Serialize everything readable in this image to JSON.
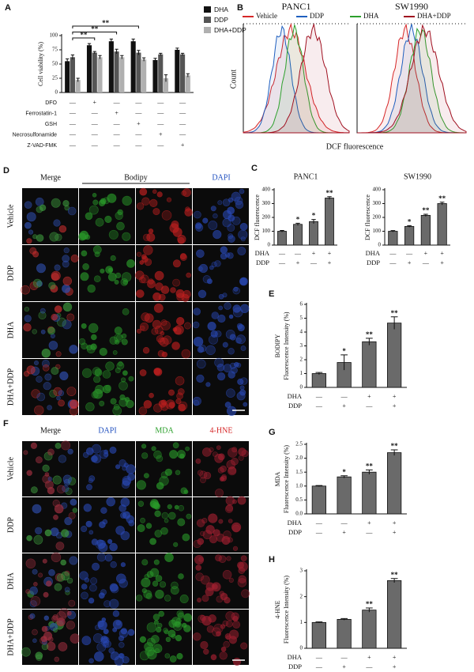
{
  "chart_data": [
    {
      "type": "bar",
      "panel": "A",
      "ylabel": "Cell viability (%)",
      "categories": [
        null,
        null,
        null,
        null,
        null,
        null
      ],
      "series": [
        {
          "name": "DHA",
          "color": "#111111",
          "values": [
            55,
            83,
            90,
            90,
            57,
            75
          ],
          "errors": [
            4,
            3,
            4,
            4,
            3,
            3
          ]
        },
        {
          "name": "DDP",
          "color": "#555555",
          "values": [
            62,
            70,
            72,
            70,
            67,
            67
          ],
          "errors": [
            4,
            2,
            4,
            4,
            2,
            2
          ]
        },
        {
          "name": "DHA+DDP",
          "color": "#b0b0b0",
          "values": [
            22,
            62,
            62,
            58,
            25,
            30
          ],
          "errors": [
            3,
            3,
            3,
            3,
            6,
            3
          ]
        }
      ],
      "ylim": [
        0,
        100
      ],
      "yticks": [
        0,
        25,
        50,
        75,
        100
      ],
      "brackets": [
        {
          "start": 0,
          "end": 1,
          "label": "**"
        },
        {
          "start": 0,
          "end": 2,
          "label": "**"
        },
        {
          "start": 0,
          "end": 3,
          "label": "**"
        }
      ],
      "conditions": [
        {
          "name": "DFO",
          "marks": [
            "—",
            "+",
            "—",
            "—",
            "—",
            "—"
          ]
        },
        {
          "name": "Ferrostatin-1",
          "marks": [
            "—",
            "—",
            "+",
            "—",
            "—",
            "—"
          ]
        },
        {
          "name": "GSH",
          "marks": [
            "—",
            "—",
            "—",
            "+",
            "—",
            "—"
          ]
        },
        {
          "name": "Necrosulfonamide",
          "marks": [
            "—",
            "—",
            "—",
            "—",
            "+",
            "—"
          ]
        },
        {
          "name": "Z-VAD-FMK",
          "marks": [
            "—",
            "—",
            "—",
            "—",
            "—",
            "+"
          ]
        }
      ]
    },
    {
      "type": "density",
      "panel": "B",
      "titles": [
        "PANC1",
        "SW1990"
      ],
      "ylabel": "Count",
      "xlabel": "DCF fluorescence",
      "series": [
        {
          "name": "Vehicle",
          "color": "#d62728"
        },
        {
          "name": "DDP",
          "color": "#1f5fbf"
        },
        {
          "name": "DHA",
          "color": "#2ca02c"
        },
        {
          "name": "DHA+DDP",
          "color": "#a01020"
        }
      ]
    },
    {
      "type": "bar",
      "panel": "C",
      "title": "PANC1",
      "ylabel": "DCF fluorescence",
      "color": "#6a6a6a",
      "categories": [
        null,
        null,
        null,
        null
      ],
      "values": [
        100,
        150,
        170,
        340
      ],
      "errors": [
        6,
        8,
        15,
        10
      ],
      "annotations": [
        null,
        "*",
        "*",
        "**"
      ],
      "ylim": [
        0,
        400
      ],
      "yticks": [
        0,
        100,
        200,
        300,
        400
      ],
      "conditions": [
        {
          "name": "DHA",
          "marks": [
            "—",
            "—",
            "+",
            "+"
          ]
        },
        {
          "name": "DDP",
          "marks": [
            "—",
            "+",
            "—",
            "+"
          ]
        }
      ]
    },
    {
      "type": "bar",
      "title": "SW1990",
      "ylabel": "DCF fluorescence",
      "color": "#6a6a6a",
      "categories": [
        null,
        null,
        null,
        null
      ],
      "values": [
        100,
        135,
        215,
        300
      ],
      "errors": [
        5,
        6,
        8,
        10
      ],
      "annotations": [
        null,
        "*",
        "**",
        "**"
      ],
      "ylim": [
        0,
        400
      ],
      "yticks": [
        0,
        100,
        200,
        300,
        400
      ],
      "conditions": [
        {
          "name": "DHA",
          "marks": [
            "—",
            "—",
            "+",
            "+"
          ]
        },
        {
          "name": "DDP",
          "marks": [
            "—",
            "+",
            "—",
            "+"
          ]
        }
      ]
    },
    {
      "type": "bar",
      "panel": "E",
      "ylabel": [
        "BODIPY",
        "Fluorescence Intensity (%)"
      ],
      "color": "#6a6a6a",
      "categories": [
        null,
        null,
        null,
        null
      ],
      "values": [
        1.0,
        1.8,
        3.3,
        4.65
      ],
      "errors": [
        0.08,
        0.55,
        0.25,
        0.45
      ],
      "annotations": [
        null,
        "*",
        "**",
        "**"
      ],
      "ylim": [
        0,
        6
      ],
      "yticks": [
        0,
        1,
        2,
        3,
        4,
        5,
        6
      ],
      "conditions": [
        {
          "name": "DHA",
          "marks": [
            "—",
            "—",
            "+",
            "+"
          ]
        },
        {
          "name": "DDP",
          "marks": [
            "—",
            "+",
            "—",
            "+"
          ]
        }
      ]
    },
    {
      "type": "bar",
      "panel": "G",
      "ylabel": [
        "MDA",
        "Fluorescence Intensity (%)"
      ],
      "color": "#6a6a6a",
      "categories": [
        null,
        null,
        null,
        null
      ],
      "values": [
        1.0,
        1.33,
        1.5,
        2.2
      ],
      "errors": [
        0.02,
        0.04,
        0.08,
        0.1
      ],
      "annotations": [
        null,
        "*",
        "**",
        "**"
      ],
      "ylim": [
        0,
        2.5
      ],
      "yticks": [
        {
          "value": 0,
          "label": "0.0"
        },
        0.5,
        {
          "value": 1,
          "label": "1.0"
        },
        1.5,
        {
          "value": 2,
          "label": "2.0"
        },
        2.5
      ],
      "conditions": [
        {
          "name": "DHA",
          "marks": [
            "—",
            "—",
            "+",
            "+"
          ]
        },
        {
          "name": "DDP",
          "marks": [
            "—",
            "+",
            "—",
            "+"
          ]
        }
      ]
    },
    {
      "type": "bar",
      "panel": "H",
      "ylabel": [
        "4-HNE",
        "Fluorescence Intensity (%)"
      ],
      "color": "#6a6a6a",
      "categories": [
        null,
        null,
        null,
        null
      ],
      "values": [
        1.0,
        1.12,
        1.48,
        2.62
      ],
      "errors": [
        0.02,
        0.03,
        0.08,
        0.08
      ],
      "annotations": [
        null,
        null,
        "**",
        "**"
      ],
      "ylim": [
        0,
        3
      ],
      "yticks": [
        0,
        1,
        2,
        3
      ],
      "conditions": [
        {
          "name": "DHA",
          "marks": [
            "—",
            "—",
            "+",
            "+"
          ]
        },
        {
          "name": "DDP",
          "marks": [
            "—",
            "+",
            "—",
            "+"
          ]
        }
      ]
    }
  ],
  "image_panels": [
    {
      "panel": "D",
      "headers": [
        {
          "text": "Merge",
          "color": "#111111",
          "span": 1
        },
        {
          "text": "Bodipy",
          "color": "#111111",
          "span": 2
        },
        {
          "text": "DAPI",
          "color": "#1f4fbf",
          "span": 1
        }
      ],
      "rows": [
        "Vehicle",
        "DDP",
        "DHA",
        "DHA+DDP"
      ]
    },
    {
      "panel": "F",
      "headers": [
        {
          "text": "Merge",
          "color": "#111111",
          "span": 1
        },
        {
          "text": "DAPI",
          "color": "#1f4fbf",
          "span": 1
        },
        {
          "text": "MDA",
          "color": "#2ca02c",
          "span": 1
        },
        {
          "text": "4-HNE",
          "color": "#d62728",
          "span": 1
        }
      ],
      "rows": [
        "Vehicle",
        "DDP",
        "DHA",
        "DHA+DDP"
      ]
    }
  ]
}
